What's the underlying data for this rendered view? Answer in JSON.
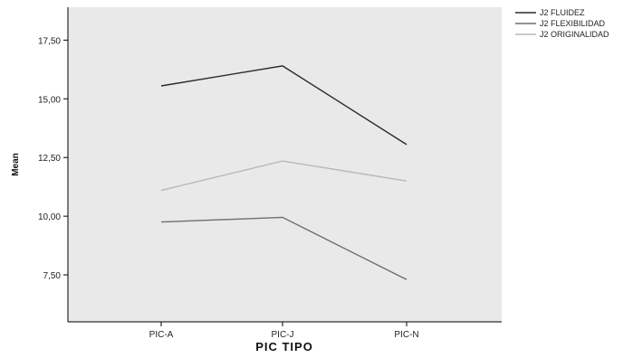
{
  "chart_data": {
    "type": "line",
    "title": "",
    "xlabel": "PIC TIPO",
    "ylabel": "Mean",
    "categories": [
      "PIC-A",
      "PIC-J",
      "PIC-N"
    ],
    "yticks": [
      "7,50",
      "10,00",
      "12,50",
      "15,00",
      "17,50"
    ],
    "ytick_values": [
      7.5,
      10.0,
      12.5,
      15.0,
      17.5
    ],
    "ylim": [
      5.5,
      18.9
    ],
    "grid": false,
    "legend_position": "top-right outside",
    "series": [
      {
        "name": "J2 FLUIDEZ",
        "values": [
          15.55,
          16.4,
          13.05
        ],
        "color": "#2b2b2b"
      },
      {
        "name": "J2 FLEXIBILIDAD",
        "values": [
          9.75,
          9.95,
          7.3
        ],
        "color": "#6e6e6e"
      },
      {
        "name": "J2 ORIGINALIDAD",
        "values": [
          11.1,
          12.35,
          11.5
        ],
        "color": "#b8b8b8"
      }
    ],
    "colors": {
      "plot_background": "#e9e9e9",
      "axis": "#000000"
    }
  }
}
